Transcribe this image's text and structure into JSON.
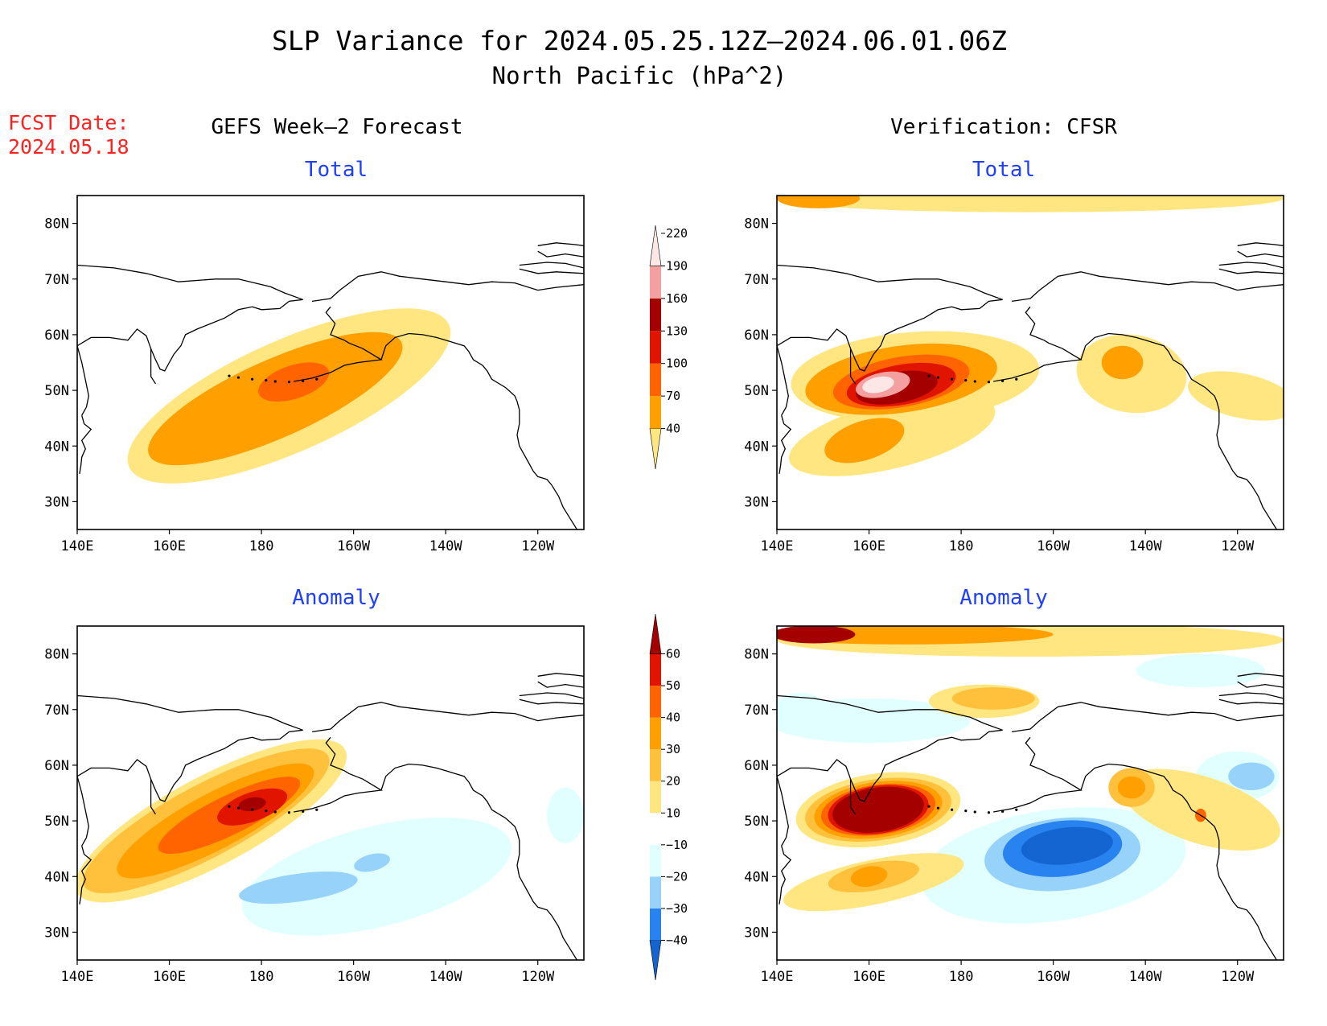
{
  "title": "SLP Variance for 2024.05.25.12Z–2024.06.01.06Z",
  "subtitle": "North Pacific (hPa^2)",
  "fcst_date_label": "FCST Date:",
  "fcst_date": "2024.05.18",
  "left_column_title": "GEFS Week–2 Forecast",
  "right_column_title": "Verification: CFSR",
  "panel_titles": {
    "total": "Total",
    "anomaly": "Anomaly"
  },
  "colors": {
    "title": "#000000",
    "fcst": "#ff2020",
    "panel_title": "#1f3fff",
    "land_outline": "#000000",
    "frame": "#000000"
  },
  "chart_data": [
    {
      "type": "heatmap",
      "title": "Total",
      "column": "GEFS Week–2 Forecast",
      "x_ticks": [
        "140E",
        "160E",
        "180",
        "160W",
        "140W",
        "120W"
      ],
      "y_ticks": [
        "30N",
        "40N",
        "50N",
        "60N",
        "70N",
        "80N"
      ],
      "xlim": [
        140,
        250
      ],
      "ylim": [
        25,
        85
      ],
      "fields": [
        {
          "level": 40,
          "lon": 186,
          "lat": 49,
          "rlon": 38,
          "rlat": 10,
          "rot": 24
        },
        {
          "level": 70,
          "lon": 183,
          "lat": 48.5,
          "rlon": 30,
          "rlat": 7,
          "rot": 24
        },
        {
          "level": 100,
          "lon": 187,
          "lat": 51.5,
          "rlon": 8,
          "rlat": 3,
          "rot": 18
        }
      ]
    },
    {
      "type": "heatmap",
      "title": "Total",
      "column": "Verification: CFSR",
      "x_ticks": [
        "140E",
        "160E",
        "180",
        "160W",
        "140W",
        "120W"
      ],
      "y_ticks": [
        "30N",
        "40N",
        "50N",
        "60N",
        "70N",
        "80N"
      ],
      "xlim": [
        140,
        250
      ],
      "ylim": [
        25,
        85
      ],
      "fields": [
        {
          "level": 40,
          "lon": 170,
          "lat": 52.5,
          "rlon": 27,
          "rlat": 8,
          "rot": 4
        },
        {
          "level": 40,
          "lon": 165,
          "lat": 42,
          "rlon": 23,
          "rlat": 6,
          "rot": 14
        },
        {
          "level": 40,
          "lon": 217,
          "lat": 53,
          "rlon": 12,
          "rlat": 7,
          "rot": -8
        },
        {
          "level": 40,
          "lon": 241,
          "lat": 49,
          "rlon": 12,
          "rlat": 4,
          "rot": -12
        },
        {
          "level": 40,
          "lon": 195,
          "lat": 84.5,
          "rlon": 55,
          "rlat": 2.5,
          "rot": 0
        },
        {
          "level": 70,
          "lon": 167,
          "lat": 52,
          "rlon": 21,
          "rlat": 6,
          "rot": 8
        },
        {
          "level": 70,
          "lon": 159,
          "lat": 41,
          "rlon": 9,
          "rlat": 3.5,
          "rot": 18
        },
        {
          "level": 70,
          "lon": 149,
          "lat": 84.5,
          "rlon": 9,
          "rlat": 1.8,
          "rot": 0
        },
        {
          "level": 70,
          "lon": 215,
          "lat": 55,
          "rlon": 4.5,
          "rlat": 3,
          "rot": 0
        },
        {
          "level": 100,
          "lon": 167,
          "lat": 51.5,
          "rlon": 15,
          "rlat": 4.5,
          "rot": 10
        },
        {
          "level": 130,
          "lon": 167,
          "lat": 51,
          "rlon": 12,
          "rlat": 3.6,
          "rot": 10
        },
        {
          "level": 160,
          "lon": 166,
          "lat": 50.5,
          "rlon": 9,
          "rlat": 2.8,
          "rot": 10
        },
        {
          "level": 190,
          "lon": 163,
          "lat": 51,
          "rlon": 6,
          "rlat": 2.2,
          "rot": 12
        },
        {
          "level": 220,
          "lon": 162,
          "lat": 51,
          "rlon": 3.5,
          "rlat": 1.4,
          "rot": 12
        }
      ]
    },
    {
      "type": "heatmap",
      "title": "Anomaly",
      "column": "GEFS Week–2 Forecast",
      "x_ticks": [
        "140E",
        "160E",
        "180",
        "160W",
        "140W",
        "120W"
      ],
      "y_ticks": [
        "30N",
        "40N",
        "50N",
        "60N",
        "70N",
        "80N"
      ],
      "xlim": [
        140,
        250
      ],
      "ylim": [
        25,
        85
      ],
      "fields": [
        {
          "level": -10,
          "lon": 205,
          "lat": 40,
          "rlon": 30,
          "rlat": 9,
          "rot": 14
        },
        {
          "level": -10,
          "lon": 246,
          "lat": 51,
          "rlon": 4,
          "rlat": 5,
          "rot": 0
        },
        {
          "level": -20,
          "lon": 188,
          "lat": 38,
          "rlon": 13,
          "rlat": 2.5,
          "rot": 8
        },
        {
          "level": -20,
          "lon": 204,
          "lat": 42.5,
          "rlon": 4,
          "rlat": 1.5,
          "rot": 14
        },
        {
          "level": 10,
          "lon": 169,
          "lat": 50,
          "rlon": 33,
          "rlat": 8,
          "rot": 28
        },
        {
          "level": 20,
          "lon": 168,
          "lat": 50,
          "rlon": 30,
          "rlat": 6.5,
          "rot": 28
        },
        {
          "level": 30,
          "lon": 170,
          "lat": 50,
          "rlon": 24,
          "rlat": 5,
          "rot": 28
        },
        {
          "level": 40,
          "lon": 173,
          "lat": 51,
          "rlon": 17,
          "rlat": 3.5,
          "rot": 26
        },
        {
          "level": 50,
          "lon": 178,
          "lat": 52.5,
          "rlon": 8,
          "rlat": 2.6,
          "rot": 20
        },
        {
          "level": 60,
          "lon": 178,
          "lat": 53,
          "rlon": 3,
          "rlat": 1.2,
          "rot": 10
        }
      ]
    },
    {
      "type": "heatmap",
      "title": "Anomaly",
      "column": "Verification: CFSR",
      "x_ticks": [
        "140E",
        "160E",
        "180",
        "160W",
        "140W",
        "120W"
      ],
      "y_ticks": [
        "30N",
        "40N",
        "50N",
        "60N",
        "70N",
        "80N"
      ],
      "xlim": [
        140,
        250
      ],
      "ylim": [
        25,
        85
      ],
      "fields": [
        {
          "level": -10,
          "lon": 200,
          "lat": 42,
          "rlon": 29,
          "rlat": 10,
          "rot": 8
        },
        {
          "level": -10,
          "lon": 160,
          "lat": 68,
          "rlon": 22,
          "rlat": 4,
          "rot": 0
        },
        {
          "level": -10,
          "lon": 145,
          "lat": 70,
          "rlon": 6,
          "rlat": 3,
          "rot": 0
        },
        {
          "level": -10,
          "lon": 240,
          "lat": 58,
          "rlon": 9,
          "rlat": 4.5,
          "rot": 0
        },
        {
          "level": -10,
          "lon": 232,
          "lat": 77,
          "rlon": 14,
          "rlat": 3,
          "rot": 0
        },
        {
          "level": -20,
          "lon": 202,
          "lat": 44,
          "rlon": 17,
          "rlat": 6.5,
          "rot": 6
        },
        {
          "level": -20,
          "lon": 243,
          "lat": 58,
          "rlon": 5,
          "rlat": 2.5,
          "rot": 0
        },
        {
          "level": -30,
          "lon": 202,
          "lat": 45,
          "rlon": 13,
          "rlat": 5,
          "rot": 6
        },
        {
          "level": -40,
          "lon": 203,
          "lat": 45.5,
          "rlon": 10,
          "rlat": 3.3,
          "rot": 6
        },
        {
          "level": 10,
          "lon": 162,
          "lat": 52,
          "rlon": 18,
          "rlat": 6.5,
          "rot": 8
        },
        {
          "level": 10,
          "lon": 161,
          "lat": 39,
          "rlon": 20,
          "rlat": 4,
          "rot": 12
        },
        {
          "level": 10,
          "lon": 185,
          "lat": 71.5,
          "rlon": 12,
          "rlat": 3,
          "rot": 0
        },
        {
          "level": 10,
          "lon": 232,
          "lat": 52,
          "rlon": 18,
          "rlat": 6,
          "rot": -18
        },
        {
          "level": 10,
          "lon": 195,
          "lat": 82.5,
          "rlon": 55,
          "rlat": 3,
          "rot": 0
        },
        {
          "level": 20,
          "lon": 162,
          "lat": 52,
          "rlon": 16,
          "rlat": 5.5,
          "rot": 8
        },
        {
          "level": 20,
          "lon": 187,
          "lat": 72,
          "rlon": 9,
          "rlat": 2,
          "rot": 0
        },
        {
          "level": 20,
          "lon": 161,
          "lat": 40,
          "rlon": 10,
          "rlat": 2.5,
          "rot": 10
        },
        {
          "level": 20,
          "lon": 217,
          "lat": 56,
          "rlon": 5,
          "rlat": 3.5,
          "rot": 0
        },
        {
          "level": 30,
          "lon": 162,
          "lat": 52,
          "rlon": 14,
          "rlat": 5,
          "rot": 8
        },
        {
          "level": 30,
          "lon": 160,
          "lat": 40,
          "rlon": 4,
          "rlat": 1.8,
          "rot": 10
        },
        {
          "level": 30,
          "lon": 217,
          "lat": 56,
          "rlon": 3,
          "rlat": 2,
          "rot": 0
        },
        {
          "level": 30,
          "lon": 168,
          "lat": 83.5,
          "rlon": 32,
          "rlat": 1.8,
          "rot": 0
        },
        {
          "level": 40,
          "lon": 162,
          "lat": 52,
          "rlon": 12.5,
          "rlat": 4.5,
          "rot": 8
        },
        {
          "level": 40,
          "lon": 232,
          "lat": 51,
          "rlon": 1.2,
          "rlat": 1.2,
          "rot": 0
        },
        {
          "level": 50,
          "lon": 162,
          "lat": 52,
          "rlon": 11,
          "rlat": 4.3,
          "rot": 8
        },
        {
          "level": 60,
          "lon": 162,
          "lat": 52,
          "rlon": 10,
          "rlat": 4,
          "rot": 8
        },
        {
          "level": 60,
          "lon": 148,
          "lat": 83.5,
          "rlon": 9,
          "rlat": 1.6,
          "rot": 0
        }
      ]
    }
  ],
  "colorbars": {
    "total": {
      "levels": [
        40,
        70,
        100,
        130,
        160,
        190,
        220
      ],
      "colors": [
        "#ffe680",
        "#ffa000",
        "#ff6400",
        "#e11400",
        "#a50000",
        "#f5a0a0",
        "#fde6e6"
      ]
    },
    "anomaly": {
      "levels": [
        -40,
        -30,
        -20,
        -10,
        10,
        20,
        30,
        40,
        50,
        60
      ],
      "colors": [
        "#1464d2",
        "#2882f0",
        "#96d2fa",
        "#e1ffff",
        "#ffffff",
        "#ffe680",
        "#ffc03c",
        "#ffa000",
        "#ff6400",
        "#e11400",
        "#a50000"
      ]
    }
  }
}
